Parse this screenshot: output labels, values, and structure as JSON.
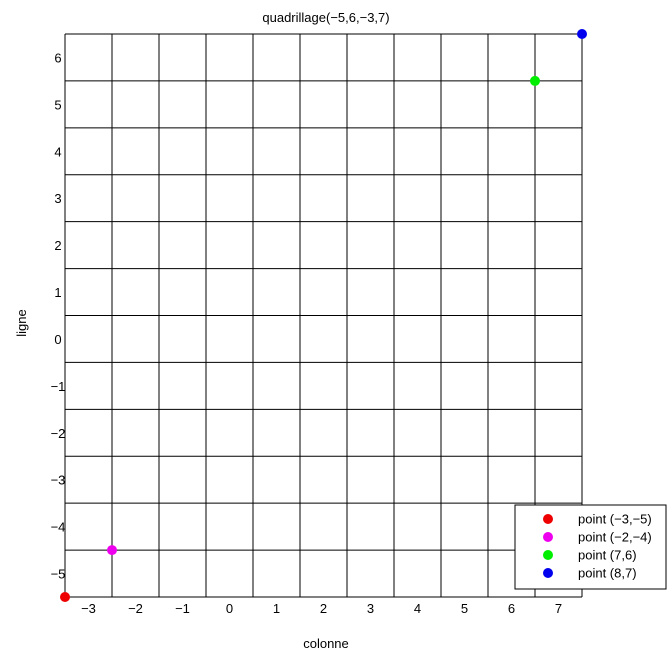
{
  "chart_data": {
    "type": "scatter",
    "title": "quadrillage(−5,6,−3,7)",
    "xlabel": "colonne",
    "ylabel": "ligne",
    "xlim": [
      -3.5,
      7.5
    ],
    "ylim": [
      -5.5,
      6.5
    ],
    "grid": true,
    "x_ticks": [
      -3,
      -2,
      -1,
      0,
      1,
      2,
      3,
      4,
      5,
      6,
      7
    ],
    "x_tick_labels": [
      "−3",
      "−2",
      "−1",
      "0",
      "1",
      "2",
      "3",
      "4",
      "5",
      "6",
      "7"
    ],
    "y_ticks": [
      -5,
      -4,
      -3,
      -2,
      -1,
      0,
      1,
      2,
      3,
      4,
      5,
      6
    ],
    "y_tick_labels": [
      "−5",
      "−4",
      "−3",
      "−2",
      "−1",
      "0",
      "1",
      "2",
      "3",
      "4",
      "5",
      "6"
    ],
    "legend_position": "bottom-right",
    "series": [
      {
        "name": "point (−3,−5)",
        "color": "#ee0000",
        "x": -3.5,
        "y": -5.5
      },
      {
        "name": "point (−2,−4)",
        "color": "#ee00ee",
        "x": -2.5,
        "y": -4.5
      },
      {
        "name": "point (7,6)",
        "color": "#00ee00",
        "x": 6.5,
        "y": 5.5
      },
      {
        "name": "point (8,7)",
        "color": "#0000ee",
        "x": 7.5,
        "y": 6.5
      }
    ]
  }
}
